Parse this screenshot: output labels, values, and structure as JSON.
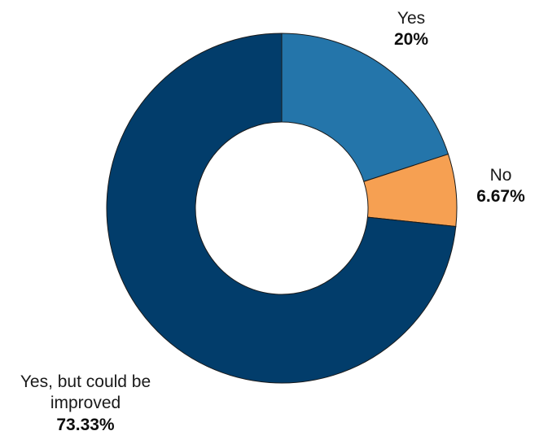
{
  "chart_data": {
    "type": "pie",
    "variant": "donut",
    "title": "",
    "categories": [
      "Yes",
      "No",
      "Yes, but could be improved"
    ],
    "values": [
      20,
      6.67,
      73.33
    ],
    "value_labels": [
      "20%",
      "6.67%",
      "73.33%"
    ],
    "colors": [
      "#2475aa",
      "#f6a052",
      "#023d6b"
    ],
    "start_angle": "12 o'clock",
    "direction": "clockwise",
    "legend": "none"
  },
  "cropped_fragment": "o"
}
